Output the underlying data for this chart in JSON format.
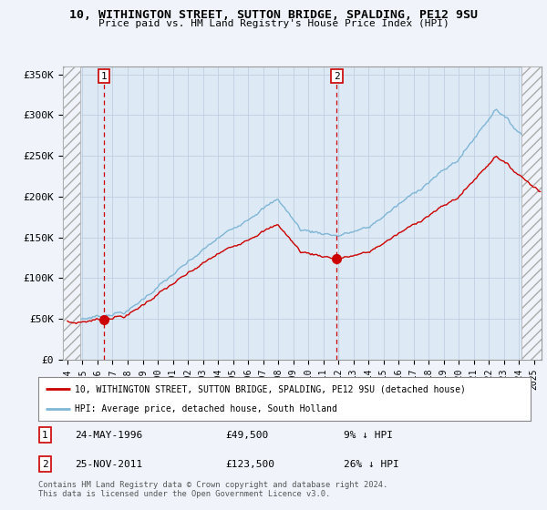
{
  "title": "10, WITHINGTON STREET, SUTTON BRIDGE, SPALDING, PE12 9SU",
  "subtitle": "Price paid vs. HM Land Registry's House Price Index (HPI)",
  "ylim": [
    0,
    360000
  ],
  "yticks": [
    0,
    50000,
    100000,
    150000,
    200000,
    250000,
    300000,
    350000
  ],
  "ytick_labels": [
    "£0",
    "£50K",
    "£100K",
    "£150K",
    "£200K",
    "£250K",
    "£300K",
    "£350K"
  ],
  "sale1_year": 1996.42,
  "sale1_price": 49500,
  "sale2_year": 2011.9,
  "sale2_price": 123500,
  "hpi_color": "#7fb5d5",
  "sale_color": "#cc0000",
  "dashed_color": "#cc0000",
  "legend_sale_label": "10, WITHINGTON STREET, SUTTON BRIDGE, SPALDING, PE12 9SU (detached house)",
  "legend_hpi_label": "HPI: Average price, detached house, South Holland",
  "annotation1_date": "24-MAY-1996",
  "annotation1_price": "£49,500",
  "annotation1_hpi": "9% ↓ HPI",
  "annotation2_date": "25-NOV-2011",
  "annotation2_price": "£123,500",
  "annotation2_hpi": "26% ↓ HPI",
  "footer": "Contains HM Land Registry data © Crown copyright and database right 2024.\nThis data is licensed under the Open Government Licence v3.0.",
  "background_color": "#f0f4fa",
  "plot_bg_color": "#ddeaf5",
  "hatch_color": "#aaaaaa",
  "xlim_left": 1993.7,
  "xlim_right": 2025.5,
  "hatch_left_end": 1994.83,
  "hatch_right_start": 2024.17
}
